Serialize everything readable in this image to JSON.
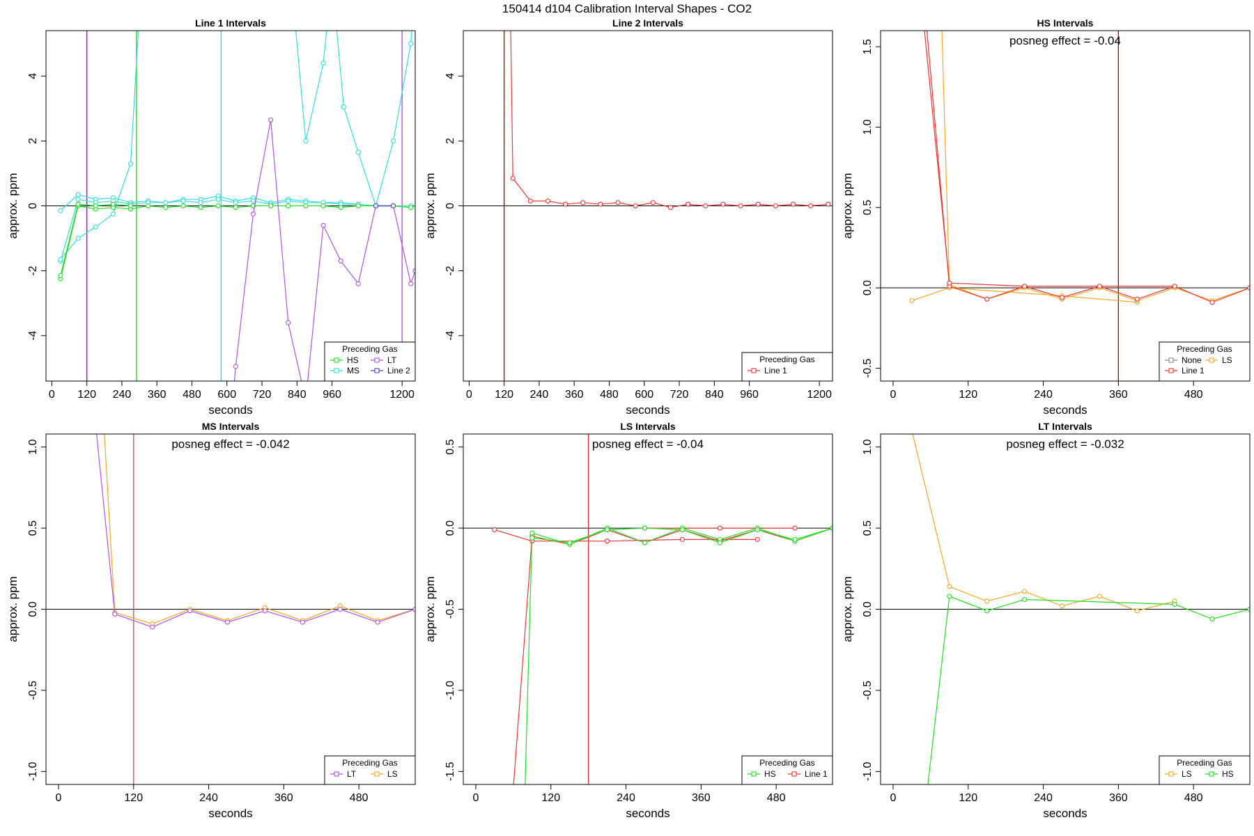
{
  "figure": {
    "title": "150414  d104   Calibration Interval Shapes - CO2"
  },
  "chart_data": [
    {
      "type": "line",
      "title": "Line 1 Intervals",
      "xlabel": "seconds",
      "ylabel": "approx. ppm",
      "xlim": [
        -20,
        1245
      ],
      "ylim": [
        -5.4,
        5.4
      ],
      "xticks": [
        0,
        120,
        240,
        360,
        480,
        600,
        720,
        840,
        960,
        1200
      ],
      "yticks": [
        -4,
        -2,
        0,
        2,
        4
      ],
      "hlines": [
        0
      ],
      "vlines": [
        {
          "x": 120,
          "color": "#7b2d8e"
        },
        {
          "x": 290,
          "color": "#22dd22"
        },
        {
          "x": 580,
          "color": "#33dddd"
        },
        {
          "x": 1200,
          "color": "#b052e8"
        }
      ],
      "legend": {
        "title": "Preceding Gas",
        "position": "bottom-right",
        "columns": 2,
        "entries": [
          {
            "label": "HS",
            "color": "#22dd22"
          },
          {
            "label": "LT",
            "color": "#b052e8"
          },
          {
            "label": "MS",
            "color": "#33dddd"
          },
          {
            "label": "Line 2",
            "color": "#4444cc"
          }
        ]
      },
      "series": [
        {
          "color": "#33dddd",
          "x": [
            30,
            90,
            150,
            210,
            270,
            330,
            390,
            450,
            510,
            570,
            630,
            690,
            750,
            810,
            870,
            930,
            990,
            1050,
            1110,
            1170,
            1230,
            1260
          ],
          "y": [
            -0.15,
            0.35,
            0.2,
            0.25,
            0.1,
            0.15,
            0.1,
            0.2,
            0.2,
            0.3,
            0.15,
            0.25,
            0.1,
            0.2,
            0.15,
            0.1,
            0.1,
            0.05,
            0.0,
            0.0,
            -0.05,
            0.05
          ]
        },
        {
          "color": "#33dddd",
          "x": [
            30,
            90,
            150,
            210,
            270,
            330,
            390,
            450,
            510,
            570,
            630,
            690,
            750,
            810,
            870,
            930,
            990,
            1050,
            1110,
            1170,
            1230
          ],
          "y": [
            -1.7,
            0.2,
            0.1,
            0.15,
            0.05,
            0.1,
            0.1,
            0.15,
            0.1,
            0.2,
            0.1,
            0.15,
            0.05,
            0.15,
            0.1,
            0.1,
            0.05,
            0.05,
            0.0,
            0.0,
            0.0
          ]
        },
        {
          "color": "#33dddd",
          "x": [
            30,
            90,
            150,
            210,
            270,
            300
          ],
          "y": [
            -1.65,
            -1.0,
            -0.65,
            -0.25,
            1.3,
            6.0
          ]
        },
        {
          "color": "#33dddd",
          "x": [
            820,
            870,
            930,
            960,
            1000,
            1050,
            1110,
            1170,
            1230,
            1245
          ],
          "y": [
            7.0,
            2.0,
            4.4,
            7.0,
            3.05,
            1.65,
            0.0,
            2.0,
            5.0,
            7.0
          ]
        },
        {
          "color": "#22dd22",
          "x": [
            30,
            90,
            150,
            210,
            270,
            330,
            390,
            450,
            510,
            570,
            630,
            690,
            750,
            810,
            870,
            930,
            990,
            1050,
            1110,
            1170,
            1230
          ],
          "y": [
            -2.25,
            0.0,
            -0.1,
            -0.05,
            -0.1,
            0.0,
            -0.05,
            0.0,
            -0.05,
            0.0,
            -0.05,
            0.0,
            0.0,
            0.0,
            0.0,
            0.0,
            -0.05,
            0.0,
            0.0,
            0.0,
            -0.05
          ]
        },
        {
          "color": "#22dd22",
          "x": [
            30,
            90,
            150,
            210,
            270
          ],
          "y": [
            -2.15,
            0.05,
            0.0,
            0.05,
            0.0
          ]
        },
        {
          "color": "#b052e8",
          "x": [
            610,
            630,
            690,
            750,
            810,
            870,
            930,
            990,
            1050,
            1110,
            1170,
            1230,
            1245
          ],
          "y": [
            -7.0,
            -4.95,
            -0.25,
            2.65,
            -3.6,
            -6.0,
            -0.6,
            -1.7,
            -2.4,
            0.0,
            0.0,
            -2.4,
            -2.0
          ]
        },
        {
          "color": "#4444cc",
          "x": [
            1110,
            1170
          ],
          "y": [
            0.0,
            0.0
          ]
        }
      ]
    },
    {
      "type": "line",
      "title": "Line 2 Intervals",
      "xlabel": "seconds",
      "ylabel": "approx. ppm",
      "xlim": [
        -20,
        1245
      ],
      "ylim": [
        -5.4,
        5.4
      ],
      "xticks": [
        0,
        120,
        240,
        360,
        480,
        600,
        720,
        840,
        960,
        1200
      ],
      "yticks": [
        -4,
        -2,
        0,
        2,
        4
      ],
      "hlines": [
        0
      ],
      "vlines": [
        {
          "x": 120,
          "color": "#8b1a1a"
        }
      ],
      "legend": {
        "title": "Preceding Gas",
        "position": "bottom-right",
        "columns": 1,
        "entries": [
          {
            "label": "Line 1",
            "color": "#ee3333"
          }
        ]
      },
      "series": [
        {
          "color": "#ee3333",
          "x": [
            140,
            150,
            210,
            270,
            330,
            390,
            450,
            510,
            570,
            630,
            690,
            750,
            810,
            870,
            930,
            990,
            1050,
            1110,
            1170,
            1230
          ],
          "y": [
            7.0,
            0.85,
            0.15,
            0.15,
            0.05,
            0.1,
            0.05,
            0.1,
            0.0,
            0.1,
            -0.05,
            0.05,
            0.0,
            0.05,
            0.0,
            0.05,
            0.0,
            0.05,
            0.0,
            0.05
          ]
        }
      ]
    },
    {
      "type": "line",
      "title": "HS Intervals",
      "xlabel": "seconds",
      "ylabel": "approx. ppm",
      "annotation": "posneg effect = -0.04",
      "xlim": [
        -20,
        570
      ],
      "ylim": [
        -0.58,
        1.6
      ],
      "xticks": [
        0,
        120,
        240,
        360,
        480
      ],
      "yticks": [
        -0.5,
        0.0,
        0.5,
        1.0,
        1.5
      ],
      "hlines": [
        0
      ],
      "vlines": [
        {
          "x": 360,
          "color": "#8b1a1a"
        }
      ],
      "legend": {
        "title": "Preceding Gas",
        "position": "bottom-right",
        "columns": 2,
        "entries": [
          {
            "label": "None",
            "color": "#888888"
          },
          {
            "label": "LS",
            "color": "#f5a623"
          },
          {
            "label": "Line 1",
            "color": "#ee3333"
          }
        ]
      },
      "series": [
        {
          "color": "#f5a623",
          "x": [
            30,
            90,
            270,
            390
          ],
          "y": [
            -0.08,
            0.0,
            -0.05,
            -0.09
          ]
        },
        {
          "color": "#f5a623",
          "x": [
            75,
            90,
            150,
            210,
            270,
            330,
            390,
            450,
            510,
            570
          ],
          "y": [
            2.0,
            0.02,
            -0.07,
            0.0,
            -0.07,
            0.0,
            -0.08,
            0.0,
            -0.08,
            0.0
          ]
        },
        {
          "color": "#ee3333",
          "x": [
            45,
            90,
            150,
            210,
            270,
            330,
            390,
            450,
            510,
            570
          ],
          "y": [
            2.0,
            0.01,
            -0.07,
            0.01,
            -0.06,
            0.01,
            -0.07,
            0.01,
            -0.09,
            0.0
          ]
        },
        {
          "color": "#ee3333",
          "x": [
            40,
            90,
            210,
            330,
            450
          ],
          "y": [
            2.0,
            0.03,
            0.01,
            0.01,
            0.01
          ]
        }
      ]
    },
    {
      "type": "line",
      "title": "MS Intervals",
      "xlabel": "seconds",
      "ylabel": "approx. ppm",
      "annotation": "posneg effect = -0.042",
      "xlim": [
        -20,
        570
      ],
      "ylim": [
        -1.08,
        1.08
      ],
      "xticks": [
        0,
        120,
        240,
        360,
        480
      ],
      "yticks": [
        -1.0,
        -0.5,
        0.0,
        0.5,
        1.0
      ],
      "hlines": [
        0
      ],
      "vlines": [
        {
          "x": 120,
          "color": "#cc5555"
        }
      ],
      "legend": {
        "title": "Preceding Gas",
        "position": "bottom-right",
        "columns": 2,
        "entries": [
          {
            "label": "LT",
            "color": "#b052e8"
          },
          {
            "label": "LS",
            "color": "#f5a623"
          }
        ]
      },
      "series": [
        {
          "color": "#f5a623",
          "x": [
            70,
            90,
            150,
            210,
            270,
            330,
            390,
            450,
            510,
            570
          ],
          "y": [
            1.3,
            -0.02,
            -0.09,
            0.0,
            -0.07,
            0.01,
            -0.07,
            0.02,
            -0.07,
            0.0
          ]
        },
        {
          "color": "#b052e8",
          "x": [
            55,
            90,
            150,
            210,
            270,
            330,
            390,
            450,
            510,
            570
          ],
          "y": [
            1.3,
            -0.03,
            -0.11,
            -0.01,
            -0.08,
            -0.01,
            -0.08,
            0.0,
            -0.08,
            0.0
          ]
        }
      ]
    },
    {
      "type": "line",
      "title": "LS Intervals",
      "xlabel": "seconds",
      "ylabel": "approx. ppm",
      "annotation": "posneg effect = -0.04",
      "xlim": [
        -20,
        570
      ],
      "ylim": [
        -1.58,
        0.58
      ],
      "xticks": [
        0,
        120,
        240,
        360,
        480
      ],
      "yticks": [
        -1.5,
        -1.0,
        -0.5,
        0.0,
        0.5
      ],
      "hlines": [
        0
      ],
      "vlines": [
        {
          "x": 180,
          "color": "#cc3333"
        }
      ],
      "legend": {
        "title": "Preceding Gas",
        "position": "bottom-right",
        "columns": 2,
        "entries": [
          {
            "label": "HS",
            "color": "#22dd22"
          },
          {
            "label": "Line 1",
            "color": "#ee3333"
          }
        ]
      },
      "series": [
        {
          "color": "#ee3333",
          "x": [
            30,
            90,
            210,
            330,
            450
          ],
          "y": [
            -0.01,
            -0.08,
            -0.08,
            -0.07,
            -0.07
          ]
        },
        {
          "color": "#ee3333",
          "x": [
            58,
            90,
            150,
            210,
            270,
            330,
            390,
            450,
            510,
            570
          ],
          "y": [
            -1.7,
            -0.05,
            -0.1,
            -0.01,
            -0.09,
            -0.01,
            -0.08,
            -0.01,
            -0.08,
            0.0
          ]
        },
        {
          "color": "#ee3333",
          "x": [
            270,
            390,
            510
          ],
          "y": [
            0.0,
            0.0,
            0.0
          ]
        },
        {
          "color": "#22dd22",
          "x": [
            78,
            90,
            150,
            210,
            270,
            330,
            390,
            450,
            510,
            570
          ],
          "y": [
            -1.7,
            -0.03,
            -0.1,
            0.0,
            -0.09,
            0.0,
            -0.07,
            0.0,
            -0.08,
            0.0
          ]
        },
        {
          "color": "#22dd22",
          "x": [
            90,
            150,
            210,
            270,
            330,
            390,
            450,
            510,
            570
          ],
          "y": [
            -0.06,
            -0.09,
            -0.01,
            0.0,
            -0.01,
            -0.09,
            -0.01,
            -0.07,
            0.0
          ]
        }
      ]
    },
    {
      "type": "line",
      "title": "LT Intervals",
      "xlabel": "seconds",
      "ylabel": "approx. ppm",
      "annotation": "posneg effect = -0.032",
      "xlim": [
        -20,
        570
      ],
      "ylim": [
        -1.08,
        1.08
      ],
      "xticks": [
        0,
        120,
        240,
        360,
        480
      ],
      "yticks": [
        -1.0,
        -0.5,
        0.0,
        0.5,
        1.0
      ],
      "hlines": [
        0
      ],
      "vlines": [],
      "legend": {
        "title": "Preceding Gas",
        "position": "bottom-right",
        "columns": 2,
        "entries": [
          {
            "label": "LS",
            "color": "#f5a623"
          },
          {
            "label": "HS",
            "color": "#22dd22"
          }
        ]
      },
      "series": [
        {
          "color": "#f5a623",
          "x": [
            30,
            90,
            150,
            210,
            270,
            330,
            390,
            450
          ],
          "y": [
            1.1,
            0.14,
            0.05,
            0.11,
            0.02,
            0.08,
            -0.01,
            0.05
          ]
        },
        {
          "color": "#22dd22",
          "x": [
            55,
            90,
            150,
            210,
            450,
            510,
            570
          ],
          "y": [
            -1.1,
            0.08,
            -0.01,
            0.06,
            0.03,
            -0.06,
            0.0
          ]
        }
      ]
    }
  ]
}
